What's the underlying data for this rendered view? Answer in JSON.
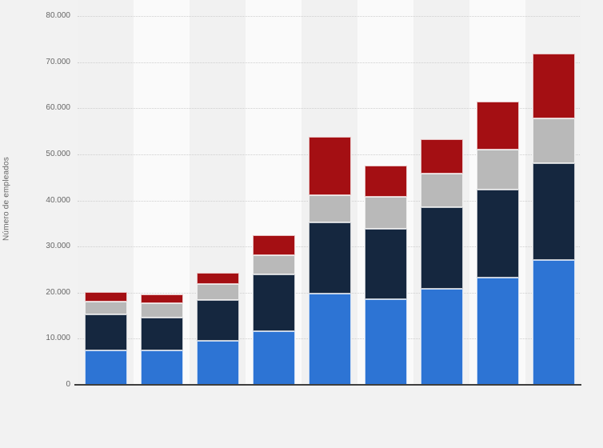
{
  "page": {
    "background_color": "#f2f2f2"
  },
  "chart_data": {
    "type": "bar",
    "stacked": true,
    "title": "",
    "xlabel": "",
    "ylabel": "Número de empleados",
    "ylim": [
      0,
      80000
    ],
    "grid": "horizontal-dotted",
    "legend_position": "none",
    "x_tick_labels_visible": false,
    "y_ticks": [
      {
        "value": 80000,
        "label": "80.000"
      },
      {
        "value": 70000,
        "label": "70.000"
      },
      {
        "value": 60000,
        "label": "60.000"
      },
      {
        "value": 50000,
        "label": "50.000"
      },
      {
        "value": 40000,
        "label": "40.000"
      },
      {
        "value": 30000,
        "label": "30.000"
      },
      {
        "value": 20000,
        "label": "20.000"
      },
      {
        "value": 10000,
        "label": "10.000"
      },
      {
        "value": 0,
        "label": "0"
      }
    ],
    "categories": [
      "",
      "",
      "",
      "",
      "",
      "",
      "",
      "",
      ""
    ],
    "series": [
      {
        "name": "segment-blue",
        "color": "#2d74d4",
        "values": [
          7400,
          7500,
          9500,
          11600,
          19700,
          18500,
          20900,
          23200,
          27100
        ]
      },
      {
        "name": "segment-dark-navy",
        "color": "#15273f",
        "values": [
          7800,
          7100,
          8900,
          12300,
          15500,
          15400,
          17600,
          19100,
          21000
        ]
      },
      {
        "name": "segment-gray",
        "color": "#b9b9b9",
        "values": [
          2900,
          3100,
          3500,
          4300,
          5900,
          6800,
          7400,
          8800,
          9700
        ]
      },
      {
        "name": "segment-dark-red",
        "color": "#a40f13",
        "values": [
          2000,
          2000,
          2400,
          4300,
          12700,
          6900,
          7400,
          10400,
          14000
        ]
      }
    ],
    "stack_totals": [
      20100,
      19700,
      24300,
      32500,
      53800,
      47600,
      53300,
      61500,
      71800
    ],
    "band_colors": [
      "#f1f1f1",
      "#fafafa"
    ],
    "axis_line_color": "#3f3f3f",
    "tick_label_color": "#666666",
    "gridline_color": "#cfcfcf"
  }
}
